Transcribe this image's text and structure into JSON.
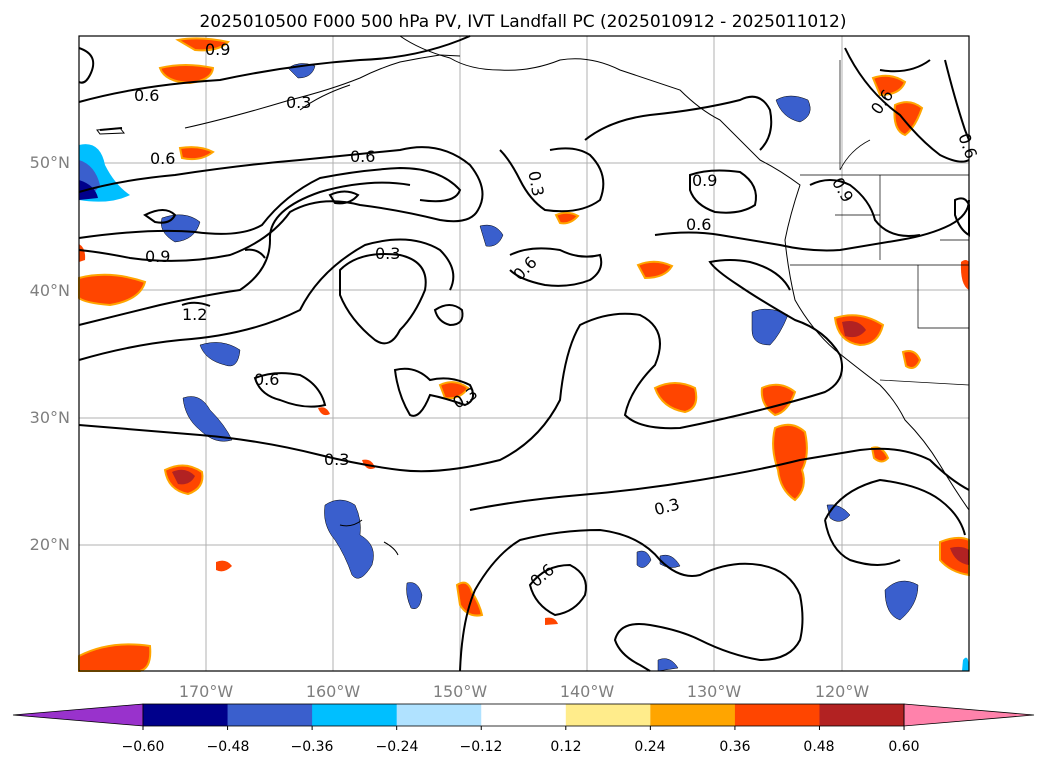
{
  "map": {
    "title": "2025010500 F000 500 hPa PV, IVT Landfall PC (2025010912 - 2025011012)",
    "lon_labels": [
      "170°W",
      "160°W",
      "150°W",
      "140°W",
      "130°W",
      "120°W"
    ],
    "lat_labels": [
      "50°N",
      "40°N",
      "30°N",
      "20°N"
    ],
    "contour_labels": [
      "0.9",
      "0.6",
      "0.3",
      "0.6",
      "0.6",
      "0.3",
      "0.9",
      "0.6",
      "0.6",
      "0.3",
      "0.9",
      "1.2",
      "0.6",
      "0.3",
      "0.3",
      "0.3",
      "0.6",
      "0.6",
      "0.9",
      "0.6"
    ],
    "colorbar": {
      "ticks": [
        "−0.60",
        "−0.48",
        "−0.36",
        "−0.24",
        "−0.12",
        "0.12",
        "0.24",
        "0.36",
        "0.48",
        "0.60"
      ],
      "colors": [
        "#9932CC",
        "#00008B",
        "#3A5FCD",
        "#00BFFF",
        "#B0E2FF",
        "#FFFFFF",
        "#FFEC8B",
        "#FFA500",
        "#FF4500",
        "#B22222",
        "#FF82AB"
      ]
    }
  }
}
